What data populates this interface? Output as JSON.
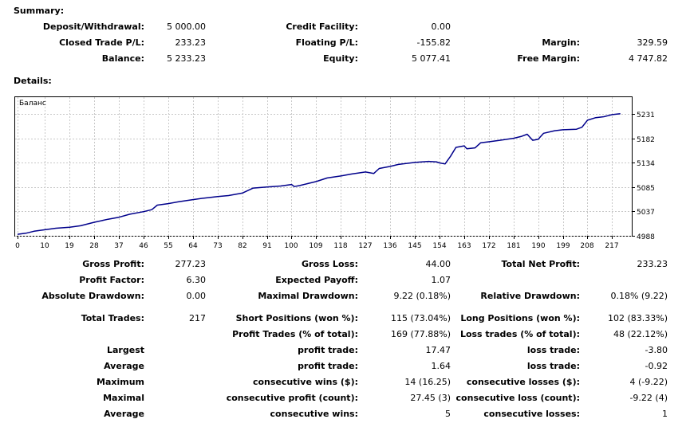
{
  "summary": {
    "title": "Summary:",
    "deposit_label": "Deposit/Withdrawal:",
    "deposit_value": "5 000.00",
    "credit_label": "Credit Facility:",
    "credit_value": "0.00",
    "closed_pl_label": "Closed Trade P/L:",
    "closed_pl_value": "233.23",
    "floating_pl_label": "Floating P/L:",
    "floating_pl_value": "-155.82",
    "margin_label": "Margin:",
    "margin_value": "329.59",
    "balance_label": "Balance:",
    "balance_value": "5 233.23",
    "equity_label": "Equity:",
    "equity_value": "5 077.41",
    "free_margin_label": "Free Margin:",
    "free_margin_value": "4 747.82"
  },
  "details": {
    "title": "Details:",
    "gross_profit_label": "Gross Profit:",
    "gross_profit_value": "277.23",
    "gross_loss_label": "Gross Loss:",
    "gross_loss_value": "44.00",
    "total_net_profit_label": "Total Net Profit:",
    "total_net_profit_value": "233.23",
    "profit_factor_label": "Profit Factor:",
    "profit_factor_value": "6.30",
    "expected_payoff_label": "Expected Payoff:",
    "expected_payoff_value": "1.07",
    "absolute_drawdown_label": "Absolute Drawdown:",
    "absolute_drawdown_value": "0.00",
    "maximal_drawdown_label": "Maximal Drawdown:",
    "maximal_drawdown_value": "9.22 (0.18%)",
    "relative_drawdown_label": "Relative Drawdown:",
    "relative_drawdown_value": "0.18% (9.22)",
    "total_trades_label": "Total Trades:",
    "total_trades_value": "217",
    "short_positions_label": "Short Positions (won %):",
    "short_positions_value": "115 (73.04%)",
    "long_positions_label": "Long Positions (won %):",
    "long_positions_value": "102 (83.33%)",
    "profit_trades_label": "Profit Trades (% of total):",
    "profit_trades_value": "169 (77.88%)",
    "loss_trades_label": "Loss trades (% of total):",
    "loss_trades_value": "48 (22.12%)",
    "largest_label": "Largest",
    "largest_profit_label": "profit trade:",
    "largest_profit_value": "17.47",
    "largest_loss_label": "loss trade:",
    "largest_loss_value": "-3.80",
    "average_label": "Average",
    "average_profit_label": "profit trade:",
    "average_profit_value": "1.64",
    "average_loss_label": "loss trade:",
    "average_loss_value": "-0.92",
    "maximum_label": "Maximum",
    "max_consec_wins_label": "consecutive wins ($):",
    "max_consec_wins_value": "14 (16.25)",
    "max_consec_losses_label": "consecutive losses ($):",
    "max_consec_losses_value": "4 (-9.22)",
    "maximal_label": "Maximal",
    "maximal_consec_profit_label": "consecutive profit (count):",
    "maximal_consec_profit_value": "27.45 (3)",
    "maximal_consec_loss_label": "consecutive loss (count):",
    "maximal_consec_loss_value": "-9.22 (4)",
    "average2_label": "Average",
    "avg_consec_wins_label": "consecutive wins:",
    "avg_consec_wins_value": "5",
    "avg_consec_losses_label": "consecutive losses:",
    "avg_consec_losses_value": "1"
  },
  "chart_data": {
    "type": "line",
    "title": "Баланс",
    "xlabel": "",
    "ylabel": "",
    "xlim": [
      0,
      223
    ],
    "ylim": [
      4988,
      5240
    ],
    "x_ticks": [
      0,
      10,
      19,
      28,
      37,
      46,
      55,
      64,
      73,
      82,
      91,
      100,
      109,
      118,
      127,
      136,
      145,
      154,
      163,
      172,
      181,
      190,
      199,
      208,
      217
    ],
    "y_ticks": [
      4988,
      5037,
      5085,
      5134,
      5182,
      5231
    ],
    "grid": true,
    "line_color": "#00008b",
    "series": [
      {
        "name": "Баланс",
        "x": [
          0,
          3,
          6,
          10,
          14,
          19,
          23,
          28,
          33,
          37,
          41,
          46,
          49,
          51,
          55,
          59,
          64,
          68,
          73,
          77,
          82,
          86,
          91,
          96,
          100,
          101,
          103,
          106,
          109,
          113,
          118,
          122,
          127,
          130,
          132,
          136,
          139,
          145,
          150,
          153,
          154,
          156,
          158,
          160,
          163,
          164,
          167,
          169,
          172,
          176,
          181,
          184,
          186,
          188,
          190,
          192,
          196,
          199,
          204,
          206,
          208,
          211,
          214,
          217,
          220
        ],
        "y": [
          4991,
          4993,
          4997,
          5000,
          5003,
          5005,
          5008,
          5015,
          5021,
          5025,
          5031,
          5036,
          5040,
          5049,
          5052,
          5056,
          5060,
          5063,
          5066,
          5068,
          5073,
          5083,
          5085,
          5087,
          5090,
          5086,
          5088,
          5092,
          5096,
          5103,
          5107,
          5111,
          5115,
          5112,
          5122,
          5126,
          5130,
          5134,
          5136,
          5135,
          5133,
          5131,
          5146,
          5164,
          5167,
          5161,
          5163,
          5173,
          5175,
          5178,
          5182,
          5186,
          5190,
          5178,
          5180,
          5192,
          5197,
          5199,
          5200,
          5204,
          5218,
          5223,
          5225,
          5229,
          5231
        ]
      }
    ]
  }
}
